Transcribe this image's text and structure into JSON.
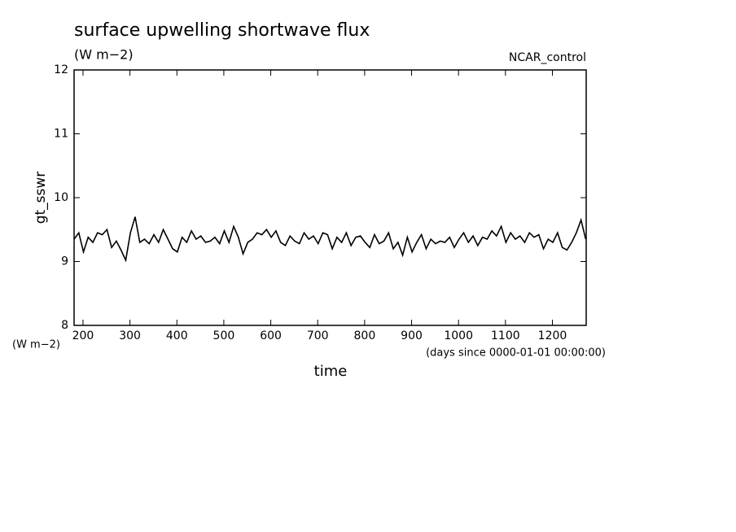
{
  "chart_data": {
    "type": "line",
    "title": "surface upwelling shortwave flux",
    "subtitle": "(W m−2)",
    "experiment": "NCAR_control",
    "ylabel": "gt_sswr",
    "yunit": "(W m−2)",
    "xlabel": "time",
    "xunit": "(days since 0000-01-01 00:00:00)",
    "color": "#000000",
    "xlim": [
      181,
      1272
    ],
    "ylim": [
      8,
      12
    ],
    "xticks": [
      200,
      300,
      400,
      500,
      600,
      700,
      800,
      900,
      1000,
      1100,
      1200
    ],
    "yticks": [
      8,
      9,
      10,
      11,
      12
    ],
    "x": [
      181,
      191,
      201,
      211,
      221,
      231,
      241,
      251,
      261,
      271,
      281,
      291,
      301,
      311,
      321,
      331,
      341,
      351,
      361,
      371,
      381,
      391,
      401,
      411,
      421,
      431,
      441,
      451,
      461,
      471,
      481,
      491,
      501,
      511,
      521,
      531,
      541,
      551,
      561,
      571,
      581,
      591,
      601,
      611,
      621,
      631,
      641,
      651,
      661,
      671,
      681,
      691,
      701,
      711,
      721,
      731,
      741,
      751,
      761,
      771,
      781,
      791,
      801,
      811,
      821,
      831,
      841,
      851,
      861,
      871,
      881,
      891,
      901,
      911,
      921,
      931,
      941,
      951,
      961,
      971,
      981,
      991,
      1001,
      1011,
      1021,
      1031,
      1041,
      1051,
      1061,
      1071,
      1081,
      1091,
      1101,
      1111,
      1121,
      1131,
      1141,
      1151,
      1161,
      1171,
      1181,
      1191,
      1201,
      1211,
      1221,
      1231,
      1241,
      1251,
      1261,
      1271
    ],
    "values": [
      9.35,
      9.45,
      9.15,
      9.38,
      9.3,
      9.45,
      9.42,
      9.5,
      9.22,
      9.32,
      9.18,
      9.02,
      9.45,
      9.7,
      9.3,
      9.35,
      9.28,
      9.42,
      9.3,
      9.5,
      9.35,
      9.2,
      9.15,
      9.38,
      9.3,
      9.48,
      9.35,
      9.4,
      9.3,
      9.32,
      9.38,
      9.28,
      9.48,
      9.3,
      9.55,
      9.38,
      9.12,
      9.3,
      9.35,
      9.45,
      9.42,
      9.5,
      9.38,
      9.48,
      9.3,
      9.25,
      9.4,
      9.32,
      9.28,
      9.45,
      9.35,
      9.4,
      9.28,
      9.45,
      9.42,
      9.2,
      9.38,
      9.3,
      9.45,
      9.25,
      9.38,
      9.4,
      9.3,
      9.22,
      9.42,
      9.28,
      9.32,
      9.45,
      9.2,
      9.3,
      9.1,
      9.38,
      9.15,
      9.3,
      9.42,
      9.2,
      9.35,
      9.28,
      9.32,
      9.3,
      9.38,
      9.22,
      9.35,
      9.45,
      9.3,
      9.4,
      9.25,
      9.38,
      9.35,
      9.48,
      9.4,
      9.55,
      9.3,
      9.45,
      9.35,
      9.4,
      9.3,
      9.45,
      9.38,
      9.42,
      9.2,
      9.35,
      9.3,
      9.45,
      9.22,
      9.18,
      9.3,
      9.45,
      9.65,
      9.35
    ]
  }
}
